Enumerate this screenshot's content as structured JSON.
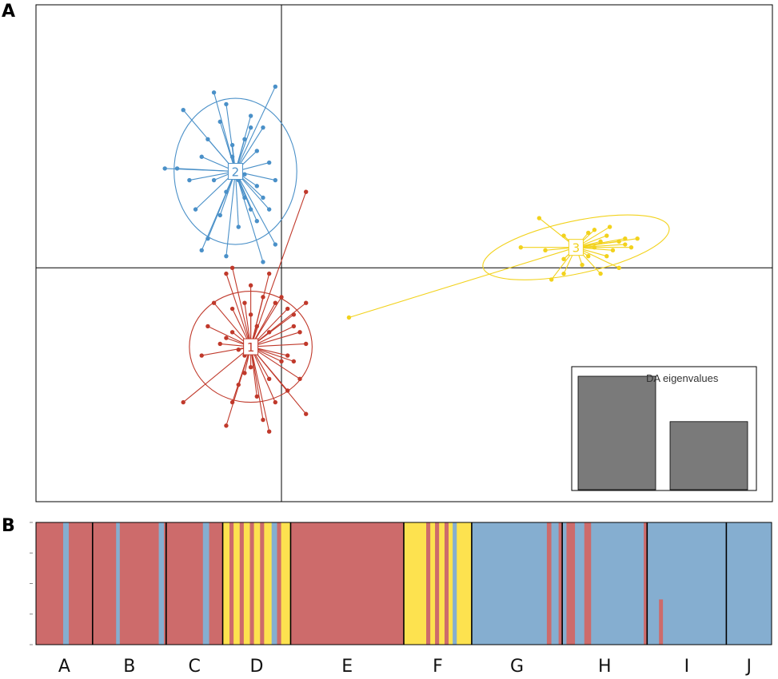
{
  "panels": {
    "a_label": "A",
    "b_label": "B"
  },
  "colors": {
    "cluster1": "#c0392b",
    "cluster2": "#4a90c8",
    "cluster3": "#f2d21c",
    "bar_red": "#cd6b6b",
    "bar_blue": "#85aed0",
    "bar_yellow": "#fde24f",
    "eig_bar": "#7a7a7a"
  },
  "chart_data": [
    {
      "type": "scatter",
      "title": "",
      "xlabel": "",
      "ylabel": "",
      "xlim": [
        -4,
        8
      ],
      "ylim": [
        -4,
        4.5
      ],
      "origin_lines": [
        0,
        0
      ],
      "clusters": [
        {
          "name": "1",
          "center": [
            -0.5,
            -1.35
          ],
          "ellipse": {
            "rx": 1.0,
            "ry": 0.95
          },
          "points": [
            [
              0.4,
              1.3
            ],
            [
              0.4,
              -0.6
            ],
            [
              0.4,
              -1.3
            ],
            [
              0.1,
              -1.5
            ],
            [
              0.0,
              -1.6
            ],
            [
              0.0,
              -0.5
            ],
            [
              -0.1,
              -0.6
            ],
            [
              0.1,
              -0.7
            ],
            [
              0.2,
              -0.8
            ],
            [
              0.2,
              -1.0
            ],
            [
              0.3,
              -1.1
            ],
            [
              -0.2,
              -0.1
            ],
            [
              -0.5,
              -0.3
            ],
            [
              -0.8,
              0.0
            ],
            [
              -0.9,
              -0.1
            ],
            [
              -1.3,
              -1.5
            ],
            [
              -1.0,
              -1.3
            ],
            [
              -0.8,
              -1.1
            ],
            [
              -0.9,
              -1.2
            ],
            [
              -1.6,
              -2.3
            ],
            [
              -0.5,
              -1.7
            ],
            [
              -0.6,
              -1.8
            ],
            [
              -0.7,
              -2.0
            ],
            [
              -0.8,
              -2.3
            ],
            [
              -0.4,
              -2.2
            ],
            [
              -0.3,
              -2.6
            ],
            [
              -0.2,
              -1.9
            ],
            [
              -0.1,
              -2.3
            ],
            [
              0.1,
              -2.1
            ],
            [
              0.4,
              -2.5
            ],
            [
              0.2,
              -1.6
            ],
            [
              -0.5,
              -0.8
            ],
            [
              -0.4,
              -1.0
            ],
            [
              -0.7,
              -1.4
            ],
            [
              -0.2,
              -1.1
            ],
            [
              -0.3,
              -0.5
            ],
            [
              -0.6,
              -0.6
            ],
            [
              -0.9,
              -2.7
            ],
            [
              -1.1,
              -0.6
            ],
            [
              -0.2,
              -2.8
            ],
            [
              -1.2,
              -1.0
            ],
            [
              -0.8,
              -0.7
            ],
            [
              0.3,
              -1.9
            ],
            [
              -0.6,
              -1.5
            ]
          ]
        },
        {
          "name": "2",
          "center": [
            -0.75,
            1.65
          ],
          "ellipse": {
            "rx": 1.0,
            "ry": 1.25
          },
          "points": [
            [
              -0.1,
              3.1
            ],
            [
              -0.5,
              2.4
            ],
            [
              -0.8,
              2.1
            ],
            [
              -1.0,
              2.5
            ],
            [
              -1.1,
              3.0
            ],
            [
              -1.6,
              2.7
            ],
            [
              -1.7,
              1.7
            ],
            [
              -1.9,
              1.7
            ],
            [
              -1.1,
              1.5
            ],
            [
              -0.9,
              1.3
            ],
            [
              -0.6,
              1.2
            ],
            [
              -0.5,
              1.0
            ],
            [
              -0.4,
              0.8
            ],
            [
              -0.1,
              0.4
            ],
            [
              -0.3,
              0.1
            ],
            [
              -0.7,
              0.7
            ],
            [
              -1.0,
              0.9
            ],
            [
              -1.2,
              0.5
            ],
            [
              -1.3,
              0.3
            ],
            [
              -1.4,
              1.0
            ],
            [
              -0.9,
              0.2
            ],
            [
              -0.8,
              1.9
            ],
            [
              -0.6,
              2.2
            ],
            [
              -0.4,
              2.0
            ],
            [
              -0.2,
              1.8
            ],
            [
              -0.1,
              1.5
            ],
            [
              -0.3,
              2.4
            ],
            [
              -0.5,
              2.6
            ],
            [
              -0.9,
              2.8
            ],
            [
              -1.2,
              2.2
            ],
            [
              -1.3,
              1.9
            ],
            [
              -0.3,
              1.2
            ],
            [
              -0.2,
              1.0
            ],
            [
              -0.6,
              1.6
            ],
            [
              -1.5,
              1.5
            ],
            [
              -0.7,
              1.5
            ],
            [
              -0.4,
              1.4
            ]
          ]
        },
        {
          "name": "3",
          "center": [
            4.8,
            0.35
          ],
          "ellipse": {
            "rx": 1.55,
            "ry": 0.45,
            "rotate_deg": -12
          },
          "points": [
            [
              1.1,
              -0.85
            ],
            [
              4.2,
              0.85
            ],
            [
              4.6,
              0.55
            ],
            [
              4.3,
              0.3
            ],
            [
              3.9,
              0.35
            ],
            [
              4.4,
              -0.2
            ],
            [
              4.6,
              -0.1
            ],
            [
              5.2,
              -0.1
            ],
            [
              5.5,
              0.0
            ],
            [
              5.0,
              0.6
            ],
            [
              5.3,
              0.55
            ],
            [
              5.5,
              0.45
            ],
            [
              5.6,
              0.4
            ],
            [
              5.7,
              0.35
            ],
            [
              5.8,
              0.5
            ],
            [
              5.4,
              0.3
            ],
            [
              5.3,
              0.2
            ],
            [
              5.0,
              0.2
            ],
            [
              5.1,
              0.35
            ],
            [
              5.2,
              0.45
            ],
            [
              5.6,
              0.5
            ],
            [
              5.35,
              0.7
            ],
            [
              5.1,
              0.65
            ],
            [
              4.9,
              0.05
            ],
            [
              4.6,
              0.15
            ]
          ]
        }
      ],
      "inset": {
        "title": "DA eigenvalues",
        "values": [
          1.0,
          0.6
        ]
      }
    },
    {
      "type": "bar",
      "title": "",
      "stacked": true,
      "xlabel": "",
      "ylabel": "",
      "ylim": [
        0,
        1
      ],
      "categories": [
        "A",
        "B",
        "C",
        "D",
        "E",
        "F",
        "G",
        "H",
        "I",
        "J"
      ],
      "group_sizes": [
        10,
        13,
        10,
        12,
        20,
        12,
        16,
        15,
        14,
        8
      ],
      "stripes": [
        {
          "group": 0,
          "offset": 0.48,
          "width": 0.1,
          "color": "blue"
        },
        {
          "group": 1,
          "offset": 0.32,
          "width": 0.05,
          "color": "blue"
        },
        {
          "group": 1,
          "offset": 0.9,
          "width": 0.07,
          "color": "blue"
        },
        {
          "group": 2,
          "offset": 0.65,
          "width": 0.11,
          "color": "blue"
        },
        {
          "group": 3,
          "offset": 0.0,
          "width": 1.0,
          "color": "yellow"
        },
        {
          "group": 3,
          "offset": 0.1,
          "width": 0.06,
          "color": "red"
        },
        {
          "group": 3,
          "offset": 0.25,
          "width": 0.06,
          "color": "red"
        },
        {
          "group": 3,
          "offset": 0.4,
          "width": 0.06,
          "color": "red"
        },
        {
          "group": 3,
          "offset": 0.55,
          "width": 0.06,
          "color": "red"
        },
        {
          "group": 3,
          "offset": 0.72,
          "width": 0.08,
          "color": "blue"
        },
        {
          "group": 3,
          "offset": 0.8,
          "width": 0.06,
          "color": "red"
        },
        {
          "group": 5,
          "offset": 0.0,
          "width": 1.0,
          "color": "yellow"
        },
        {
          "group": 5,
          "offset": 0.33,
          "width": 0.06,
          "color": "red"
        },
        {
          "group": 5,
          "offset": 0.46,
          "width": 0.06,
          "color": "red"
        },
        {
          "group": 5,
          "offset": 0.6,
          "width": 0.06,
          "color": "red"
        },
        {
          "group": 5,
          "offset": 0.72,
          "width": 0.06,
          "color": "blue"
        },
        {
          "group": 6,
          "offset": 0.83,
          "width": 0.05,
          "color": "red"
        },
        {
          "group": 6,
          "offset": 0.96,
          "width": 0.04,
          "color": "red"
        },
        {
          "group": 7,
          "offset": 0.05,
          "width": 0.1,
          "color": "red"
        },
        {
          "group": 7,
          "offset": 0.26,
          "width": 0.08,
          "color": "red"
        },
        {
          "group": 7,
          "offset": 0.96,
          "width": 0.04,
          "color": "red"
        },
        {
          "group": 8,
          "offset": 0.15,
          "width": 0.05,
          "color": "red",
          "height": 0.37
        }
      ]
    }
  ]
}
